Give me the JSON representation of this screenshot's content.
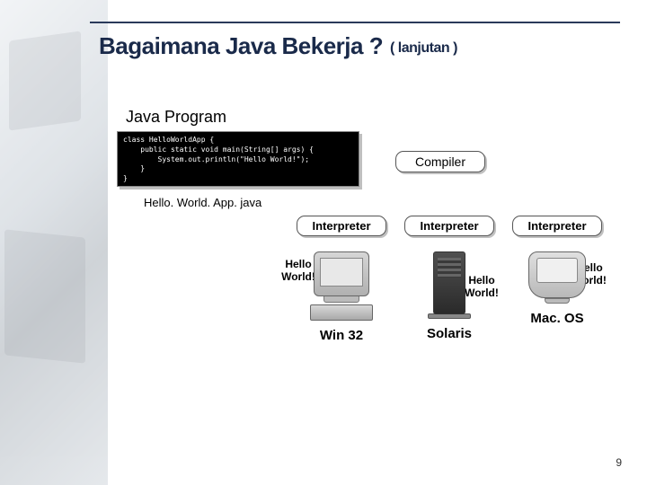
{
  "title": {
    "main": "Bagaimana Java Bekerja ?",
    "sub": "( lanjutan )"
  },
  "program_label": "Java Program",
  "code": "class HelloWorldApp {\n    public static void main(String[] args) {\n        System.out.println(\"Hello World!\");\n    }\n}",
  "file_name": "Hello. World. App. java",
  "compiler_label": "Compiler",
  "interpreter_label": "Interpreter",
  "output_text": "Hello\nWorld!",
  "platforms": {
    "p1": "Win 32",
    "p2": "Solaris",
    "p3": "Mac. OS"
  },
  "page_number": "9",
  "colors": {
    "title": "#1a2a4a",
    "rule": "#2a3a5a",
    "code_bg": "#000000",
    "code_fg": "#ffffff",
    "box_border": "#555555",
    "shadow": "#c0c0c0"
  }
}
